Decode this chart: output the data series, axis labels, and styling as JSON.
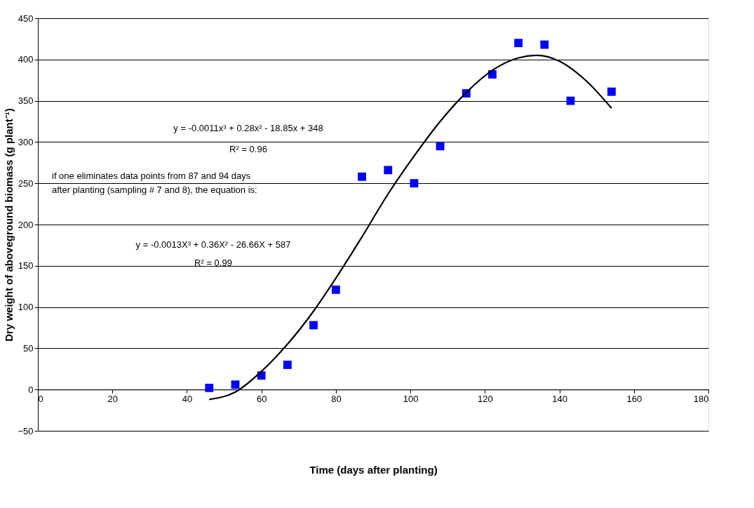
{
  "chart_data": {
    "type": "scatter",
    "xlabel": "Time (days after planting)",
    "ylabel": "Dry weight of aboveground biomass (g plant⁻¹)",
    "xlim": [
      0,
      180
    ],
    "xticks": [
      0,
      20,
      40,
      60,
      80,
      100,
      120,
      140,
      160,
      180
    ],
    "ylim": [
      -50,
      450
    ],
    "yticks": [
      -50,
      0,
      50,
      100,
      150,
      200,
      250,
      300,
      350,
      400,
      450
    ],
    "grid": "y",
    "series": [
      {
        "marker": "square",
        "color": "#0000ff",
        "x": [
          46,
          53,
          60,
          67,
          74,
          80,
          87,
          94,
          101,
          108,
          115,
          122,
          129,
          136,
          143,
          154
        ],
        "values": [
          2,
          6,
          17,
          30,
          78,
          121,
          258,
          266,
          250,
          295,
          359,
          382,
          420,
          418,
          350,
          361
        ]
      },
      {
        "type": "line",
        "marker": "none",
        "color": "#000000",
        "line_style": "solid",
        "x": [
          46,
          53,
          60,
          67,
          74,
          80,
          87,
          94,
          101,
          108,
          115,
          122,
          129,
          134,
          140,
          147,
          154
        ],
        "values": [
          -12,
          -3,
          22,
          55,
          95,
          135,
          185,
          237,
          283,
          325,
          360,
          387,
          402,
          405,
          398,
          375,
          341
        ]
      }
    ],
    "annotations": [
      "y = -0.0011x³ + 0.28x² - 18.85x + 348",
      "R² = 0.96",
      "if one eliminates data points from 87 and 94 days\nafter planting (sampling # 7 and 8), the equation is:",
      "y = -0.0013X³ + 0.36X² - 26.66X + 587",
      "R² = 0.99"
    ]
  }
}
